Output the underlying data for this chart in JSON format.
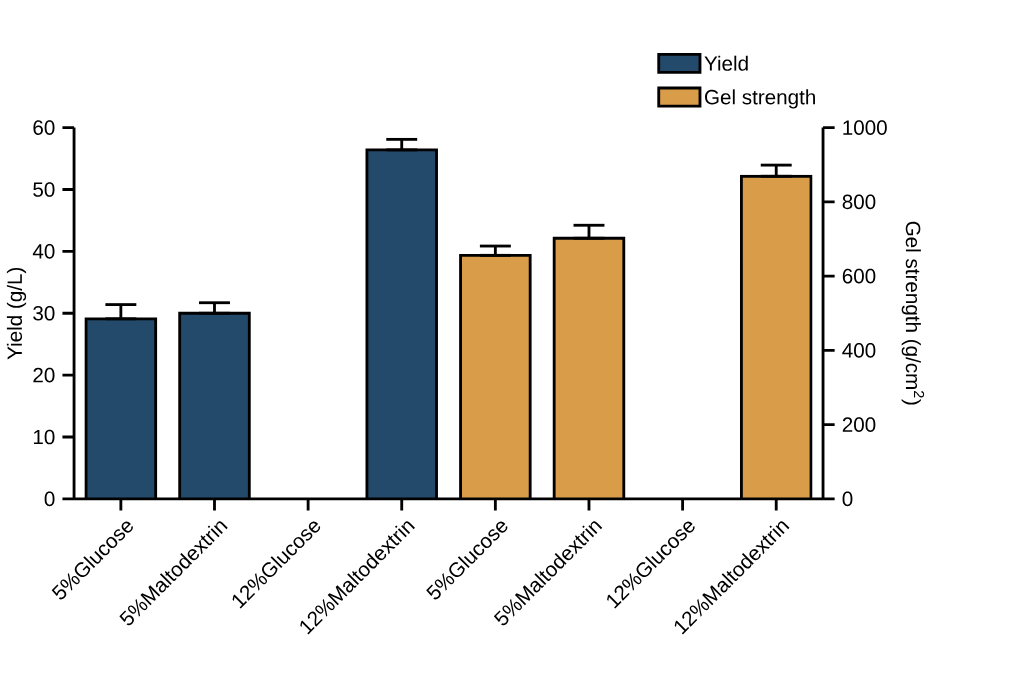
{
  "chart_data": {
    "type": "bar",
    "categories": [
      "5%Glucose",
      "5%Maltodextrin",
      "12%Glucose",
      "12%Maltodextrin",
      "5%Glucose",
      "5%Maltodextrin",
      "12%Glucose",
      "12%Maltodextrin"
    ],
    "series": [
      {
        "name": "Yield",
        "color": "#244a6b",
        "values": [
          29.1,
          30.0,
          null,
          56.4,
          null,
          null,
          null,
          null
        ],
        "errors": [
          [
            29.1,
            31.4
          ],
          [
            30.0,
            31.7
          ],
          null,
          [
            56.4,
            58.1
          ],
          null,
          null,
          null,
          null
        ]
      },
      {
        "name": "Gel strength",
        "color": "#d99c48",
        "axis": "y2",
        "values": [
          null,
          null,
          null,
          null,
          656,
          702,
          null,
          869
        ],
        "errors": [
          null,
          null,
          null,
          null,
          [
            656,
            681
          ],
          [
            702,
            737
          ],
          null,
          [
            869,
            899
          ]
        ]
      }
    ],
    "ylabel": "Yield (g/L)",
    "y2label": "Gel strength (g/cm$^{2}$)",
    "ylim": [
      0,
      60
    ],
    "yticks": [
      0,
      10,
      20,
      30,
      40,
      50,
      60
    ],
    "y2lim": [
      0,
      1000
    ],
    "y2ticks": [
      0,
      200,
      400,
      600,
      800,
      1000
    ],
    "legend": "top right"
  }
}
